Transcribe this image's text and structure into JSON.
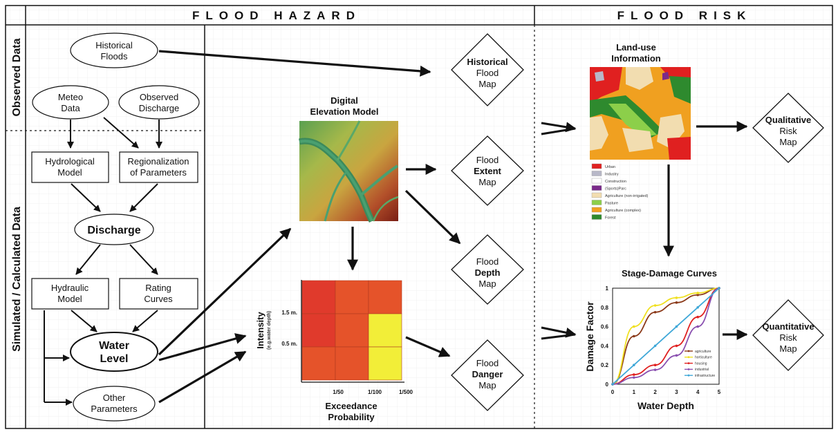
{
  "headers": {
    "flood_hazard": "FLOOD HAZARD",
    "flood_risk": "FLOOD RISK"
  },
  "side_labels": {
    "observed": "Observed Data",
    "simulated": "Simulated / Calculated Data"
  },
  "nodes": {
    "historical_floods": [
      "Historical",
      "Floods"
    ],
    "meteo_data": [
      "Meteo",
      "Data"
    ],
    "observed_discharge": [
      "Observed",
      "Discharge"
    ],
    "hydrological_model": [
      "Hydrological",
      "Model"
    ],
    "regionalization": [
      "Regionalization",
      "of Parameters"
    ],
    "discharge": "Discharge",
    "hydraulic_model": [
      "Hydraulic",
      "Model"
    ],
    "rating_curves": [
      "Rating",
      "Curves"
    ],
    "water_level": [
      "Water",
      "Level"
    ],
    "other_parameters": [
      "Other",
      "Parameters"
    ]
  },
  "maps": {
    "historical": {
      "top": "Historical",
      "mid": "Flood",
      "bot": "Map"
    },
    "extent": {
      "top": "Flood",
      "mid": "Extent",
      "bot": "Map"
    },
    "depth": {
      "top": "Flood",
      "mid": "Depth",
      "bot": "Map"
    },
    "danger": {
      "top": "Flood",
      "mid": "Danger",
      "bot": "Map"
    },
    "qualitative": {
      "top": "Qualitative",
      "mid": "Risk",
      "bot": "Map"
    },
    "quantitative": {
      "top": "Quantitative",
      "mid": "Risk",
      "bot": "Map"
    }
  },
  "dem": {
    "title": [
      "Digital",
      "Elevation Model"
    ]
  },
  "matrix": {
    "y_title": "Intensity",
    "y_subtitle": "(e.g.water depth)",
    "y_ticks": [
      "1.5 m.",
      "0.5 m."
    ],
    "x_ticks": [
      "1/50",
      "1/100",
      "1/500"
    ],
    "x_title": [
      "Exceedance",
      "Probability"
    ],
    "colors": [
      "#e03a2c",
      "#e5532a",
      "#e5532a",
      "#e03a2c",
      "#e5532a",
      "#f2ee38",
      "#e5532a",
      "#e5532a",
      "#f2ee38"
    ]
  },
  "landuse": {
    "title": [
      "Land-use",
      "Information"
    ],
    "legend": [
      {
        "label": "Urban",
        "color": "#e02020"
      },
      {
        "label": "Industry",
        "color": "#b8b8c8"
      },
      {
        "label": "Construction",
        "color": "#ffffff"
      },
      {
        "label": "(Sports)Parc",
        "color": "#7a2a8a"
      },
      {
        "label": "Agriculture (non-irrigated)",
        "color": "#f2ddb0"
      },
      {
        "label": "Pasture",
        "color": "#8ccf4a"
      },
      {
        "label": "Agriculture (complex)",
        "color": "#f0a020"
      },
      {
        "label": "Forest",
        "color": "#2e8a2e"
      }
    ]
  },
  "chart_data": {
    "type": "line",
    "title": "Stage-Damage Curves",
    "xlabel": "Water Depth",
    "ylabel": "Damage Factor",
    "xlim": [
      0,
      5
    ],
    "ylim": [
      0,
      1
    ],
    "x_ticks": [
      "0",
      "1",
      "2",
      "3",
      "4",
      "5"
    ],
    "y_ticks": [
      "0",
      "0.2",
      "0.4",
      "0.6",
      "0.8",
      "1"
    ],
    "x": [
      0,
      1,
      2,
      3,
      4,
      5
    ],
    "series": [
      {
        "name": "agriculture",
        "color": "#8b3a1a",
        "values": [
          0,
          0.5,
          0.75,
          0.85,
          0.93,
          1.0
        ]
      },
      {
        "name": "horticulture",
        "color": "#f0e020",
        "values": [
          0,
          0.6,
          0.82,
          0.9,
          0.95,
          1.0
        ]
      },
      {
        "name": "housing",
        "color": "#e02020",
        "values": [
          0,
          0.1,
          0.2,
          0.4,
          0.7,
          1.0
        ]
      },
      {
        "name": "industrial",
        "color": "#8a50b0",
        "values": [
          0,
          0.07,
          0.15,
          0.3,
          0.6,
          1.0
        ]
      },
      {
        "name": "infrastructure",
        "color": "#40a8d8",
        "values": [
          0,
          0.2,
          0.4,
          0.6,
          0.8,
          1.0
        ]
      }
    ]
  }
}
